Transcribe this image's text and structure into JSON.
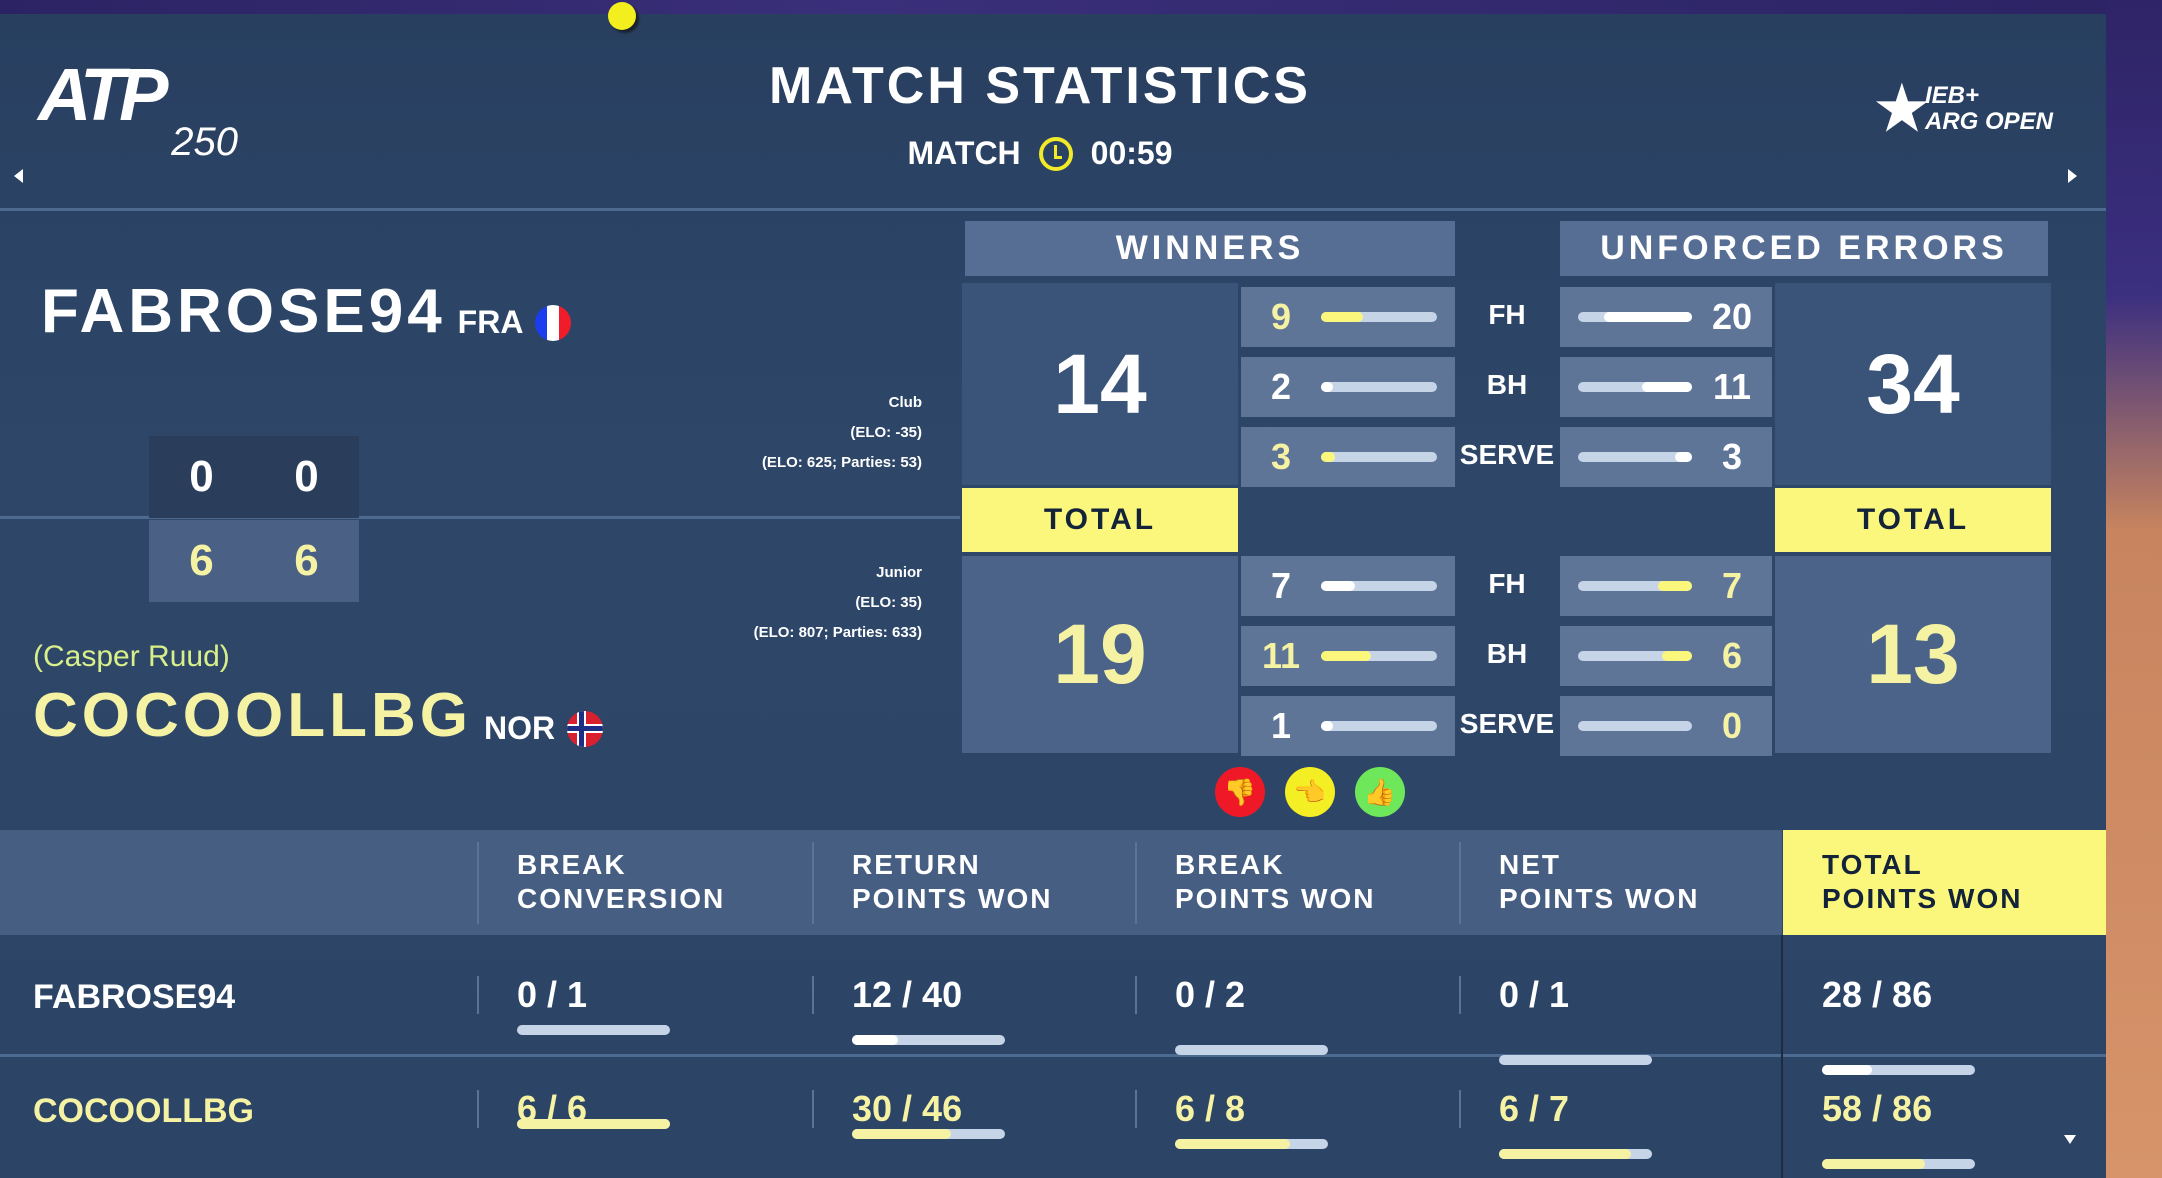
{
  "header": {
    "title": "MATCH STATISTICS",
    "match_label": "MATCH",
    "clock": "00:59",
    "left_logo": "ATP 250",
    "right_logo": "IEB+ ARG OPEN"
  },
  "players": [
    {
      "name": "FABROSE94",
      "country": "FRA",
      "sets": [
        "0",
        "0"
      ],
      "info": [
        "Club",
        "(ELO: -35)",
        "(ELO: 625; Parties: 53)"
      ]
    },
    {
      "alias": "(Casper Ruud)",
      "name": "COCOOLLBG",
      "country": "NOR",
      "sets": [
        "6",
        "6"
      ],
      "info": [
        "Junior",
        "(ELO: 35)",
        "(ELO: 807; Parties: 633)"
      ]
    }
  ],
  "colors": {
    "yellow": "#fbf77c",
    "cream": "#f6f2a4",
    "white": "#ffffff",
    "track": "#c6d4e8"
  },
  "stats": {
    "winners_label": "WINNERS",
    "ue_label": "UNFORCED ERRORS",
    "total_label": "TOTAL",
    "row_labels": [
      "FH",
      "BH",
      "SERVE"
    ],
    "winners": [
      {
        "total": "14",
        "rows": [
          {
            "v": "9",
            "fill": 0.36,
            "hl": true
          },
          {
            "v": "2",
            "fill": 0.05,
            "hl": false
          },
          {
            "v": "3",
            "fill": 0.12,
            "hl": true
          }
        ]
      },
      {
        "total": "19",
        "rows": [
          {
            "v": "7",
            "fill": 0.29,
            "hl": false
          },
          {
            "v": "11",
            "fill": 0.43,
            "hl": true
          },
          {
            "v": "1",
            "fill": 0.04,
            "hl": false
          }
        ]
      }
    ],
    "ue": [
      {
        "total": "34",
        "rows": [
          {
            "v": "20",
            "fill": 0.77,
            "hl": false
          },
          {
            "v": "11",
            "fill": 0.44,
            "hl": false
          },
          {
            "v": "3",
            "fill": 0.15,
            "hl": false
          }
        ]
      },
      {
        "total": "13",
        "rows": [
          {
            "v": "7",
            "fill": 0.3,
            "hl": true
          },
          {
            "v": "6",
            "fill": 0.26,
            "hl": true
          },
          {
            "v": "0",
            "fill": 0,
            "hl": true
          }
        ]
      }
    ]
  },
  "reactions": [
    "thumbs-down-icon",
    "thumbs-sideways-icon",
    "thumbs-up-icon"
  ],
  "table": {
    "columns": [
      "BREAK\nCONVERSION",
      "RETURN\nPOINTS WON",
      "BREAK\nPOINTS WON",
      "NET\nPOINTS WON",
      "TOTAL\nPOINTS WON"
    ],
    "rows": [
      {
        "name": "FABROSE94",
        "values": [
          "0 / 1",
          "12 / 40",
          "0 / 2",
          "0 / 1",
          "28 / 86"
        ],
        "fills": [
          0,
          0.3,
          0,
          0,
          0.33
        ]
      },
      {
        "name": "COCOOLLBG",
        "values": [
          "6 / 6",
          "30 / 46",
          "6 / 8",
          "6 / 7",
          "58 / 86"
        ],
        "fills": [
          1,
          0.65,
          0.75,
          0.86,
          0.67
        ]
      }
    ]
  }
}
